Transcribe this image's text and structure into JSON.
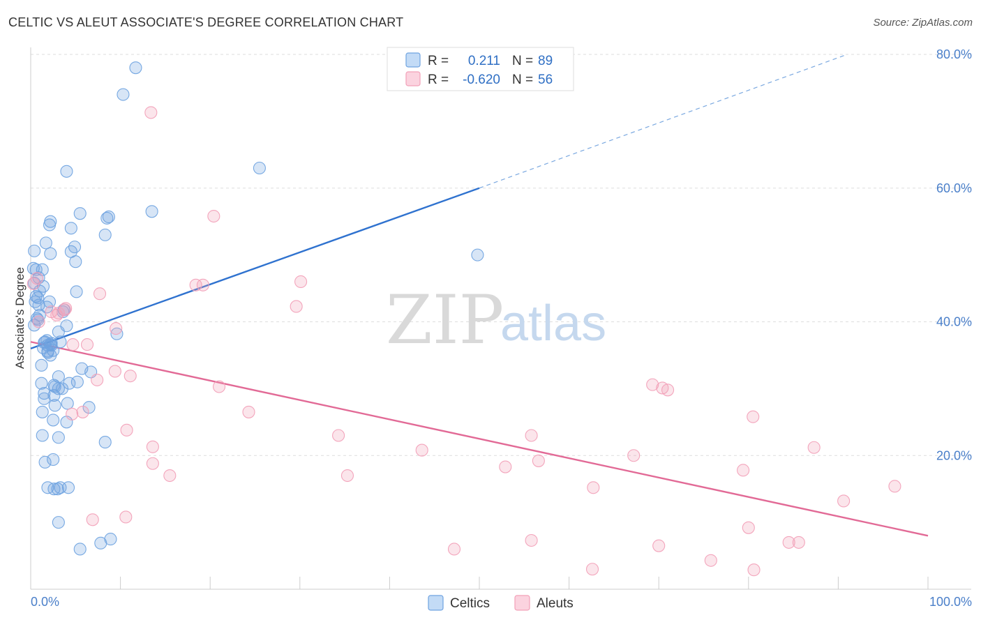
{
  "header": {
    "title": "CELTIC VS ALEUT ASSOCIATE'S DEGREE CORRELATION CHART",
    "source": "Source: ZipAtlas.com"
  },
  "watermark": {
    "zip": "ZIP",
    "atlas": "atlas"
  },
  "legend": {
    "rows": [
      {
        "r_label": "R =",
        "r_value": "0.211",
        "n_label": "N =",
        "n_value": "89",
        "color": "#a9c9f0"
      },
      {
        "r_label": "R =",
        "r_value": "-0.620",
        "n_label": "N =",
        "n_value": "56",
        "color": "#f5b8cb"
      }
    ]
  },
  "bottom_legend": {
    "items": [
      "Celtics",
      "Aleuts"
    ]
  },
  "chart_data": {
    "type": "scatter",
    "title": "CELTIC VS ALEUT ASSOCIATE'S DEGREE CORRELATION CHART",
    "xlabel": "",
    "ylabel": "Associate's Degree",
    "xlim": [
      0,
      100
    ],
    "ylim": [
      0,
      80
    ],
    "x_tick_labels": [
      "0.0%",
      "100.0%"
    ],
    "y_ticks": [
      20,
      40,
      60,
      80
    ],
    "y_tick_labels": [
      "20.0%",
      "40.0%",
      "60.0%",
      "80.0%"
    ],
    "grid": "horizontal dashed",
    "legend_placement": "top-center",
    "series": [
      {
        "name": "Celtics",
        "color": "#6fa3e0",
        "trend": {
          "x0": 0,
          "y0": 36.0,
          "x1": 50,
          "y1": 60.0,
          "dashed_to_x": 91,
          "dashed_to_y": 80.0
        },
        "points": [
          [
            11.7,
            78.0
          ],
          [
            10.3,
            74.0
          ],
          [
            4.0,
            62.5
          ],
          [
            25.5,
            63.0
          ],
          [
            13.5,
            56.5
          ],
          [
            5.5,
            56.2
          ],
          [
            8.7,
            55.7
          ],
          [
            8.5,
            55.5
          ],
          [
            2.2,
            55.0
          ],
          [
            2.1,
            54.5
          ],
          [
            4.5,
            54.0
          ],
          [
            8.3,
            53.0
          ],
          [
            1.7,
            51.8
          ],
          [
            4.9,
            51.2
          ],
          [
            0.4,
            50.6
          ],
          [
            4.5,
            50.5
          ],
          [
            2.2,
            50.2
          ],
          [
            49.8,
            50.0
          ],
          [
            5.0,
            49.0
          ],
          [
            0.3,
            48.0
          ],
          [
            0.6,
            47.8
          ],
          [
            1.3,
            47.8
          ],
          [
            0.9,
            46.6
          ],
          [
            0.4,
            45.8
          ],
          [
            1.4,
            45.3
          ],
          [
            1.0,
            44.6
          ],
          [
            5.1,
            44.5
          ],
          [
            0.6,
            43.8
          ],
          [
            0.8,
            43.6
          ],
          [
            0.5,
            43.0
          ],
          [
            2.1,
            43.0
          ],
          [
            1.8,
            42.2
          ],
          [
            3.7,
            41.8
          ],
          [
            3.6,
            41.5
          ],
          [
            1.0,
            41.0
          ],
          [
            0.7,
            40.5
          ],
          [
            0.8,
            40.3
          ],
          [
            0.4,
            39.5
          ],
          [
            4.0,
            39.4
          ],
          [
            3.1,
            38.5
          ],
          [
            9.6,
            38.2
          ],
          [
            1.6,
            37.0
          ],
          [
            1.5,
            36.9
          ],
          [
            2.3,
            36.8
          ],
          [
            2.2,
            36.6
          ],
          [
            1.9,
            36.5
          ],
          [
            1.4,
            36.1
          ],
          [
            2.5,
            35.7
          ],
          [
            1.9,
            35.6
          ],
          [
            1.9,
            35.4
          ],
          [
            2.2,
            35.0
          ],
          [
            1.2,
            33.5
          ],
          [
            5.7,
            33.0
          ],
          [
            6.7,
            32.5
          ],
          [
            3.1,
            31.8
          ],
          [
            5.2,
            31.0
          ],
          [
            1.2,
            30.8
          ],
          [
            4.3,
            30.8
          ],
          [
            2.6,
            30.5
          ],
          [
            2.7,
            30.3
          ],
          [
            3.1,
            30.0
          ],
          [
            3.5,
            30.0
          ],
          [
            1.5,
            29.3
          ],
          [
            2.6,
            29.0
          ],
          [
            1.5,
            28.5
          ],
          [
            4.1,
            27.8
          ],
          [
            2.7,
            27.5
          ],
          [
            6.5,
            27.2
          ],
          [
            1.3,
            26.5
          ],
          [
            2.5,
            25.3
          ],
          [
            4.0,
            25.0
          ],
          [
            1.3,
            23.0
          ],
          [
            3.1,
            22.7
          ],
          [
            8.3,
            22.0
          ],
          [
            2.5,
            19.4
          ],
          [
            1.6,
            19.0
          ],
          [
            1.9,
            15.2
          ],
          [
            3.3,
            15.2
          ],
          [
            4.2,
            15.2
          ],
          [
            2.6,
            15.0
          ],
          [
            3.0,
            15.0
          ],
          [
            3.1,
            10.0
          ],
          [
            8.9,
            7.5
          ],
          [
            7.8,
            6.9
          ],
          [
            5.5,
            6.0
          ],
          [
            2.3,
            36.5
          ],
          [
            1.8,
            37.2
          ],
          [
            0.9,
            42.5
          ],
          [
            3.3,
            37.0
          ]
        ]
      },
      {
        "name": "Aleuts",
        "color": "#f2a0b8",
        "trend": {
          "x0": 0,
          "y0": 37.0,
          "x1": 100,
          "y1": 8.0
        },
        "points": [
          [
            13.4,
            71.3
          ],
          [
            20.4,
            55.8
          ],
          [
            0.3,
            45.7
          ],
          [
            0.7,
            46.5
          ],
          [
            18.4,
            45.5
          ],
          [
            19.2,
            45.5
          ],
          [
            30.1,
            46.0
          ],
          [
            7.7,
            44.2
          ],
          [
            29.6,
            42.3
          ],
          [
            3.8,
            41.8
          ],
          [
            3.9,
            42.0
          ],
          [
            2.9,
            41.0
          ],
          [
            3.1,
            41.3
          ],
          [
            0.9,
            40.0
          ],
          [
            9.5,
            39.0
          ],
          [
            4.7,
            36.6
          ],
          [
            6.3,
            36.6
          ],
          [
            9.4,
            32.6
          ],
          [
            11.1,
            31.9
          ],
          [
            7.4,
            31.3
          ],
          [
            21.0,
            30.3
          ],
          [
            69.3,
            30.6
          ],
          [
            70.4,
            30.1
          ],
          [
            71.0,
            29.8
          ],
          [
            24.3,
            26.5
          ],
          [
            4.6,
            26.2
          ],
          [
            5.8,
            26.5
          ],
          [
            80.5,
            25.8
          ],
          [
            10.7,
            23.8
          ],
          [
            34.3,
            23.0
          ],
          [
            55.8,
            23.0
          ],
          [
            13.6,
            21.3
          ],
          [
            43.6,
            20.8
          ],
          [
            87.3,
            21.2
          ],
          [
            67.2,
            20.0
          ],
          [
            56.6,
            19.2
          ],
          [
            13.6,
            18.8
          ],
          [
            52.9,
            18.3
          ],
          [
            79.4,
            17.8
          ],
          [
            15.5,
            17.0
          ],
          [
            35.3,
            17.0
          ],
          [
            62.7,
            15.2
          ],
          [
            96.3,
            15.4
          ],
          [
            90.6,
            13.2
          ],
          [
            10.6,
            10.8
          ],
          [
            6.9,
            10.4
          ],
          [
            80.0,
            9.2
          ],
          [
            55.8,
            7.3
          ],
          [
            84.5,
            7.0
          ],
          [
            85.6,
            7.0
          ],
          [
            70.0,
            6.5
          ],
          [
            47.2,
            6.0
          ],
          [
            75.8,
            4.3
          ],
          [
            62.6,
            3.0
          ],
          [
            80.6,
            2.9
          ],
          [
            2.3,
            41.5
          ]
        ]
      }
    ]
  }
}
